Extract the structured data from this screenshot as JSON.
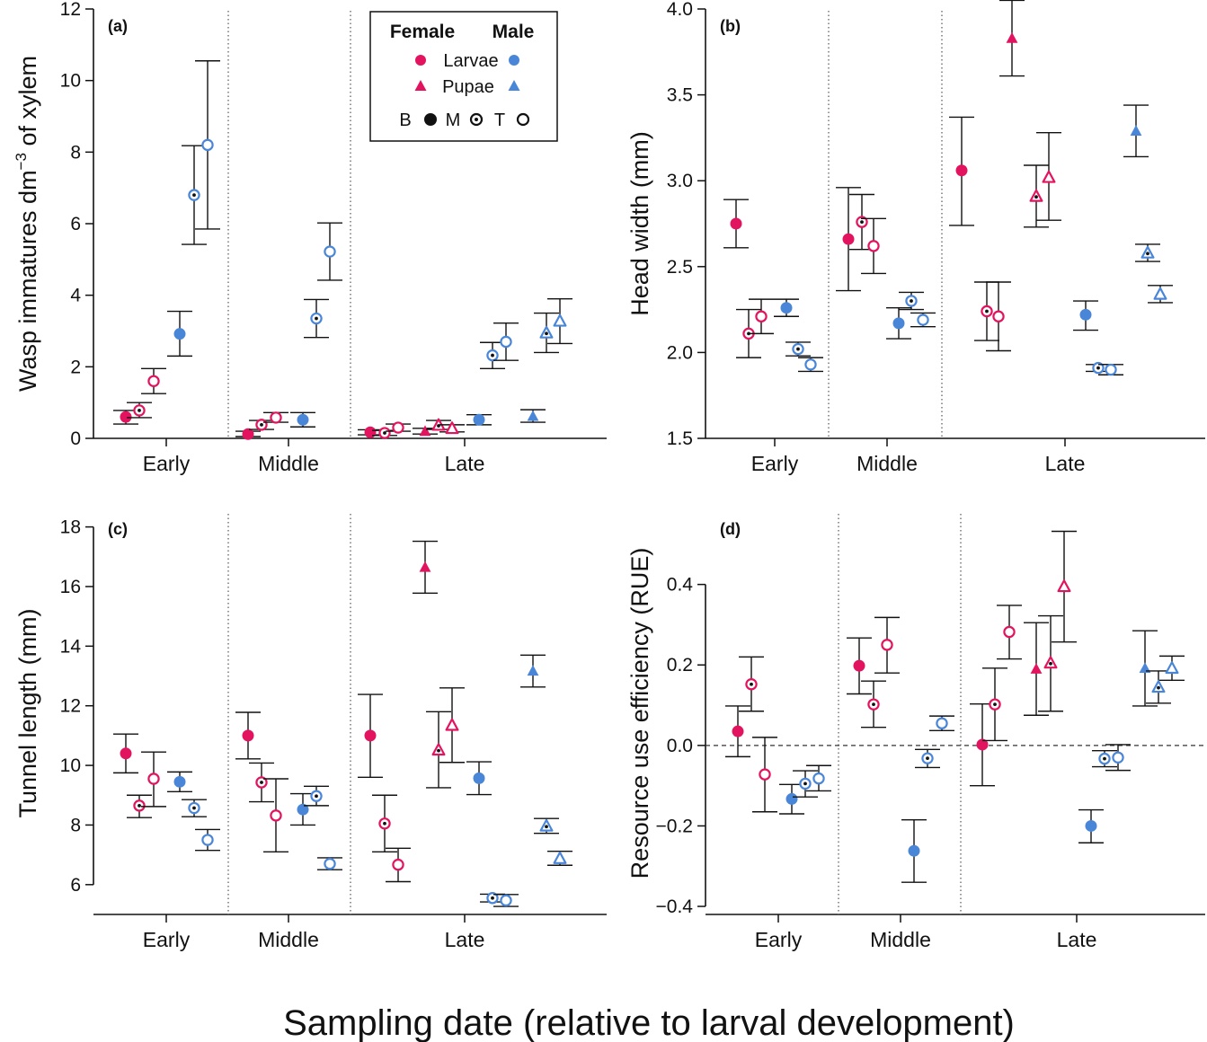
{
  "figure": {
    "xlabel": "Sampling date (relative to larval development)",
    "legend": {
      "header_female": "Female",
      "header_male": "Male",
      "larvae": "Larvae",
      "pupae": "Pupae",
      "b": "B",
      "m": "M",
      "t": "T"
    },
    "colors": {
      "female": "#e3145f",
      "male": "#4a86d8",
      "axis": "#111111"
    }
  },
  "chart_data": [
    {
      "panel": "(a)",
      "type": "scatter",
      "ylabel_main": "Wasp immatures dm",
      "ylabel_sup": "−3",
      "ylabel_tail": " of xylem",
      "ylim": [
        0,
        12
      ],
      "yticks": [
        0,
        2,
        4,
        6,
        8,
        10,
        12
      ],
      "groups": [
        "Early",
        "Middle",
        "Late"
      ],
      "points": [
        {
          "group": "Early",
          "sex": "F",
          "stage": "L",
          "pos": "B",
          "y": 0.6,
          "lo": 0.4,
          "hi": 0.78
        },
        {
          "group": "Early",
          "sex": "F",
          "stage": "L",
          "pos": "M",
          "y": 0.78,
          "lo": 0.58,
          "hi": 1.0
        },
        {
          "group": "Early",
          "sex": "F",
          "stage": "L",
          "pos": "T",
          "y": 1.6,
          "lo": 1.25,
          "hi": 1.95
        },
        {
          "group": "Early",
          "sex": "M",
          "stage": "L",
          "pos": "B",
          "y": 2.92,
          "lo": 2.3,
          "hi": 3.55
        },
        {
          "group": "Early",
          "sex": "M",
          "stage": "L",
          "pos": "M",
          "y": 6.8,
          "lo": 5.42,
          "hi": 8.18
        },
        {
          "group": "Early",
          "sex": "M",
          "stage": "L",
          "pos": "T",
          "y": 8.2,
          "lo": 5.85,
          "hi": 10.55
        },
        {
          "group": "Middle",
          "sex": "F",
          "stage": "L",
          "pos": "B",
          "y": 0.12,
          "lo": 0.05,
          "hi": 0.2
        },
        {
          "group": "Middle",
          "sex": "F",
          "stage": "L",
          "pos": "M",
          "y": 0.38,
          "lo": 0.25,
          "hi": 0.5
        },
        {
          "group": "Middle",
          "sex": "F",
          "stage": "L",
          "pos": "T",
          "y": 0.58,
          "lo": 0.45,
          "hi": 0.72
        },
        {
          "group": "Middle",
          "sex": "M",
          "stage": "L",
          "pos": "B",
          "y": 0.52,
          "lo": 0.32,
          "hi": 0.72
        },
        {
          "group": "Middle",
          "sex": "M",
          "stage": "L",
          "pos": "M",
          "y": 3.35,
          "lo": 2.82,
          "hi": 3.88
        },
        {
          "group": "Middle",
          "sex": "M",
          "stage": "L",
          "pos": "T",
          "y": 5.22,
          "lo": 4.42,
          "hi": 6.02
        },
        {
          "group": "Late",
          "sex": "F",
          "stage": "L",
          "pos": "B",
          "y": 0.17,
          "lo": 0.1,
          "hi": 0.24
        },
        {
          "group": "Late",
          "sex": "F",
          "stage": "L",
          "pos": "M",
          "y": 0.15,
          "lo": 0.08,
          "hi": 0.22
        },
        {
          "group": "Late",
          "sex": "F",
          "stage": "L",
          "pos": "T",
          "y": 0.3,
          "lo": 0.2,
          "hi": 0.4
        },
        {
          "group": "Late",
          "sex": "F",
          "stage": "P",
          "pos": "B",
          "y": 0.2,
          "lo": 0.12,
          "hi": 0.28
        },
        {
          "group": "Late",
          "sex": "F",
          "stage": "P",
          "pos": "M",
          "y": 0.37,
          "lo": 0.25,
          "hi": 0.5
        },
        {
          "group": "Late",
          "sex": "F",
          "stage": "P",
          "pos": "T",
          "y": 0.28,
          "lo": 0.18,
          "hi": 0.38
        },
        {
          "group": "Late",
          "sex": "M",
          "stage": "L",
          "pos": "B",
          "y": 0.52,
          "lo": 0.38,
          "hi": 0.66
        },
        {
          "group": "Late",
          "sex": "M",
          "stage": "L",
          "pos": "M",
          "y": 2.32,
          "lo": 1.95,
          "hi": 2.68
        },
        {
          "group": "Late",
          "sex": "M",
          "stage": "L",
          "pos": "T",
          "y": 2.7,
          "lo": 2.18,
          "hi": 3.22
        },
        {
          "group": "Late",
          "sex": "M",
          "stage": "P",
          "pos": "B",
          "y": 0.62,
          "lo": 0.45,
          "hi": 0.8
        },
        {
          "group": "Late",
          "sex": "M",
          "stage": "P",
          "pos": "M",
          "y": 2.95,
          "lo": 2.4,
          "hi": 3.5
        },
        {
          "group": "Late",
          "sex": "M",
          "stage": "P",
          "pos": "T",
          "y": 3.28,
          "lo": 2.65,
          "hi": 3.9
        }
      ]
    },
    {
      "panel": "(b)",
      "type": "scatter",
      "ylabel_main": "Head width (mm)",
      "ylim": [
        1.5,
        4.0
      ],
      "yticks": [
        1.5,
        2.0,
        2.5,
        3.0,
        3.5,
        4.0
      ],
      "ytick_decimals": 1,
      "groups": [
        "Early",
        "Middle",
        "Late"
      ],
      "points": [
        {
          "group": "Early",
          "sex": "F",
          "stage": "L",
          "pos": "B",
          "y": 2.75,
          "lo": 2.61,
          "hi": 2.89
        },
        {
          "group": "Early",
          "sex": "F",
          "stage": "L",
          "pos": "M",
          "y": 2.11,
          "lo": 1.97,
          "hi": 2.25
        },
        {
          "group": "Early",
          "sex": "F",
          "stage": "L",
          "pos": "T",
          "y": 2.21,
          "lo": 2.11,
          "hi": 2.31
        },
        {
          "group": "Early",
          "sex": "M",
          "stage": "L",
          "pos": "B",
          "y": 2.26,
          "lo": 2.21,
          "hi": 2.31
        },
        {
          "group": "Early",
          "sex": "M",
          "stage": "L",
          "pos": "M",
          "y": 2.02,
          "lo": 1.98,
          "hi": 2.06
        },
        {
          "group": "Early",
          "sex": "M",
          "stage": "L",
          "pos": "T",
          "y": 1.93,
          "lo": 1.89,
          "hi": 1.97
        },
        {
          "group": "Middle",
          "sex": "F",
          "stage": "L",
          "pos": "B",
          "y": 2.66,
          "lo": 2.36,
          "hi": 2.96
        },
        {
          "group": "Middle",
          "sex": "F",
          "stage": "L",
          "pos": "M",
          "y": 2.76,
          "lo": 2.6,
          "hi": 2.92
        },
        {
          "group": "Middle",
          "sex": "F",
          "stage": "L",
          "pos": "T",
          "y": 2.62,
          "lo": 2.46,
          "hi": 2.78
        },
        {
          "group": "Middle",
          "sex": "M",
          "stage": "L",
          "pos": "B",
          "y": 2.17,
          "lo": 2.08,
          "hi": 2.26
        },
        {
          "group": "Middle",
          "sex": "M",
          "stage": "L",
          "pos": "M",
          "y": 2.3,
          "lo": 2.25,
          "hi": 2.35
        },
        {
          "group": "Middle",
          "sex": "M",
          "stage": "L",
          "pos": "T",
          "y": 2.19,
          "lo": 2.15,
          "hi": 2.23
        },
        {
          "group": "Late",
          "sex": "F",
          "stage": "L",
          "pos": "B",
          "y": 3.06,
          "lo": 2.74,
          "hi": 3.37
        },
        {
          "group": "Late",
          "sex": "F",
          "stage": "L",
          "pos": "M",
          "y": 2.24,
          "lo": 2.07,
          "hi": 2.41
        },
        {
          "group": "Late",
          "sex": "F",
          "stage": "L",
          "pos": "T",
          "y": 2.21,
          "lo": 2.01,
          "hi": 2.41
        },
        {
          "group": "Late",
          "sex": "F",
          "stage": "P",
          "pos": "B",
          "y": 3.83,
          "lo": 3.61,
          "hi": 4.05
        },
        {
          "group": "Late",
          "sex": "F",
          "stage": "P",
          "pos": "M",
          "y": 2.91,
          "lo": 2.73,
          "hi": 3.09
        },
        {
          "group": "Late",
          "sex": "F",
          "stage": "P",
          "pos": "T",
          "y": 3.02,
          "lo": 2.77,
          "hi": 3.28
        },
        {
          "group": "Late",
          "sex": "M",
          "stage": "L",
          "pos": "B",
          "y": 2.22,
          "lo": 2.13,
          "hi": 2.3
        },
        {
          "group": "Late",
          "sex": "M",
          "stage": "L",
          "pos": "M",
          "y": 1.91,
          "lo": 1.89,
          "hi": 1.93
        },
        {
          "group": "Late",
          "sex": "M",
          "stage": "L",
          "pos": "T",
          "y": 1.9,
          "lo": 1.87,
          "hi": 1.93
        },
        {
          "group": "Late",
          "sex": "M",
          "stage": "P",
          "pos": "B",
          "y": 3.29,
          "lo": 3.14,
          "hi": 3.44
        },
        {
          "group": "Late",
          "sex": "M",
          "stage": "P",
          "pos": "M",
          "y": 2.58,
          "lo": 2.53,
          "hi": 2.63
        },
        {
          "group": "Late",
          "sex": "M",
          "stage": "P",
          "pos": "T",
          "y": 2.34,
          "lo": 2.29,
          "hi": 2.39
        }
      ]
    },
    {
      "panel": "(c)",
      "type": "scatter",
      "ylabel_main": "Tunnel  length (mm)",
      "ylim": [
        5,
        18.5
      ],
      "yticks": [
        6,
        8,
        10,
        12,
        14,
        16,
        18
      ],
      "groups": [
        "Early",
        "Middle",
        "Late"
      ],
      "points": [
        {
          "group": "Early",
          "sex": "F",
          "stage": "L",
          "pos": "B",
          "y": 10.4,
          "lo": 9.75,
          "hi": 11.05
        },
        {
          "group": "Early",
          "sex": "F",
          "stage": "L",
          "pos": "M",
          "y": 8.65,
          "lo": 8.25,
          "hi": 9.0
        },
        {
          "group": "Early",
          "sex": "F",
          "stage": "L",
          "pos": "T",
          "y": 9.55,
          "lo": 8.62,
          "hi": 10.45
        },
        {
          "group": "Early",
          "sex": "M",
          "stage": "L",
          "pos": "B",
          "y": 9.45,
          "lo": 9.12,
          "hi": 9.78
        },
        {
          "group": "Early",
          "sex": "M",
          "stage": "L",
          "pos": "M",
          "y": 8.57,
          "lo": 8.28,
          "hi": 8.85
        },
        {
          "group": "Early",
          "sex": "M",
          "stage": "L",
          "pos": "T",
          "y": 7.5,
          "lo": 7.15,
          "hi": 7.85
        },
        {
          "group": "Middle",
          "sex": "F",
          "stage": "L",
          "pos": "B",
          "y": 11.0,
          "lo": 10.22,
          "hi": 11.78
        },
        {
          "group": "Middle",
          "sex": "F",
          "stage": "L",
          "pos": "M",
          "y": 9.43,
          "lo": 8.78,
          "hi": 10.08
        },
        {
          "group": "Middle",
          "sex": "F",
          "stage": "L",
          "pos": "T",
          "y": 8.32,
          "lo": 7.1,
          "hi": 9.55
        },
        {
          "group": "Middle",
          "sex": "M",
          "stage": "L",
          "pos": "B",
          "y": 8.52,
          "lo": 8.0,
          "hi": 9.05
        },
        {
          "group": "Middle",
          "sex": "M",
          "stage": "L",
          "pos": "M",
          "y": 8.97,
          "lo": 8.65,
          "hi": 9.3
        },
        {
          "group": "Middle",
          "sex": "M",
          "stage": "L",
          "pos": "T",
          "y": 6.7,
          "lo": 6.5,
          "hi": 6.9
        },
        {
          "group": "Late",
          "sex": "F",
          "stage": "L",
          "pos": "B",
          "y": 11.0,
          "lo": 9.6,
          "hi": 12.38
        },
        {
          "group": "Late",
          "sex": "F",
          "stage": "L",
          "pos": "M",
          "y": 8.05,
          "lo": 7.1,
          "hi": 9.0
        },
        {
          "group": "Late",
          "sex": "F",
          "stage": "L",
          "pos": "T",
          "y": 6.67,
          "lo": 6.1,
          "hi": 7.22
        },
        {
          "group": "Late",
          "sex": "F",
          "stage": "P",
          "pos": "B",
          "y": 16.65,
          "lo": 15.78,
          "hi": 17.52
        },
        {
          "group": "Late",
          "sex": "F",
          "stage": "P",
          "pos": "M",
          "y": 10.52,
          "lo": 9.25,
          "hi": 11.8
        },
        {
          "group": "Late",
          "sex": "F",
          "stage": "P",
          "pos": "T",
          "y": 11.35,
          "lo": 10.1,
          "hi": 12.6
        },
        {
          "group": "Late",
          "sex": "M",
          "stage": "L",
          "pos": "B",
          "y": 9.57,
          "lo": 9.02,
          "hi": 10.12
        },
        {
          "group": "Late",
          "sex": "M",
          "stage": "L",
          "pos": "M",
          "y": 5.55,
          "lo": 5.42,
          "hi": 5.68
        },
        {
          "group": "Late",
          "sex": "M",
          "stage": "L",
          "pos": "T",
          "y": 5.47,
          "lo": 5.27,
          "hi": 5.67
        },
        {
          "group": "Late",
          "sex": "M",
          "stage": "P",
          "pos": "B",
          "y": 13.17,
          "lo": 12.63,
          "hi": 13.7
        },
        {
          "group": "Late",
          "sex": "M",
          "stage": "P",
          "pos": "M",
          "y": 7.97,
          "lo": 7.72,
          "hi": 8.22
        },
        {
          "group": "Late",
          "sex": "M",
          "stage": "P",
          "pos": "T",
          "y": 6.88,
          "lo": 6.65,
          "hi": 7.12
        }
      ]
    },
    {
      "panel": "(d)",
      "type": "scatter",
      "ylabel_main": "Resource use efficiency (RUE)",
      "ylim": [
        -0.42,
        0.58
      ],
      "yticks": [
        -0.4,
        -0.2,
        0.0,
        0.2,
        0.4
      ],
      "ytick_decimals": 1,
      "zero_line": true,
      "groups": [
        "Early",
        "Middle",
        "Late"
      ],
      "points": [
        {
          "group": "Early",
          "sex": "F",
          "stage": "L",
          "pos": "B",
          "y": 0.035,
          "lo": -0.028,
          "hi": 0.098
        },
        {
          "group": "Early",
          "sex": "F",
          "stage": "L",
          "pos": "M",
          "y": 0.152,
          "lo": 0.085,
          "hi": 0.22
        },
        {
          "group": "Early",
          "sex": "F",
          "stage": "L",
          "pos": "T",
          "y": -0.072,
          "lo": -0.165,
          "hi": 0.02
        },
        {
          "group": "Early",
          "sex": "M",
          "stage": "L",
          "pos": "B",
          "y": -0.133,
          "lo": -0.17,
          "hi": -0.097
        },
        {
          "group": "Early",
          "sex": "M",
          "stage": "L",
          "pos": "M",
          "y": -0.095,
          "lo": -0.128,
          "hi": -0.063
        },
        {
          "group": "Early",
          "sex": "M",
          "stage": "L",
          "pos": "T",
          "y": -0.082,
          "lo": -0.113,
          "hi": -0.05
        },
        {
          "group": "Middle",
          "sex": "F",
          "stage": "L",
          "pos": "B",
          "y": 0.198,
          "lo": 0.128,
          "hi": 0.267
        },
        {
          "group": "Middle",
          "sex": "F",
          "stage": "L",
          "pos": "M",
          "y": 0.102,
          "lo": 0.045,
          "hi": 0.16
        },
        {
          "group": "Middle",
          "sex": "F",
          "stage": "L",
          "pos": "T",
          "y": 0.25,
          "lo": 0.18,
          "hi": 0.318
        },
        {
          "group": "Middle",
          "sex": "M",
          "stage": "L",
          "pos": "B",
          "y": -0.262,
          "lo": -0.34,
          "hi": -0.185
        },
        {
          "group": "Middle",
          "sex": "M",
          "stage": "L",
          "pos": "M",
          "y": -0.032,
          "lo": -0.055,
          "hi": -0.01
        },
        {
          "group": "Middle",
          "sex": "M",
          "stage": "L",
          "pos": "T",
          "y": 0.055,
          "lo": 0.037,
          "hi": 0.073
        },
        {
          "group": "Late",
          "sex": "F",
          "stage": "L",
          "pos": "B",
          "y": 0.002,
          "lo": -0.1,
          "hi": 0.103
        },
        {
          "group": "Late",
          "sex": "F",
          "stage": "L",
          "pos": "M",
          "y": 0.102,
          "lo": 0.012,
          "hi": 0.192
        },
        {
          "group": "Late",
          "sex": "F",
          "stage": "L",
          "pos": "T",
          "y": 0.282,
          "lo": 0.215,
          "hi": 0.348
        },
        {
          "group": "Late",
          "sex": "F",
          "stage": "P",
          "pos": "B",
          "y": 0.19,
          "lo": 0.075,
          "hi": 0.305
        },
        {
          "group": "Late",
          "sex": "F",
          "stage": "P",
          "pos": "M",
          "y": 0.205,
          "lo": 0.085,
          "hi": 0.322
        },
        {
          "group": "Late",
          "sex": "F",
          "stage": "P",
          "pos": "T",
          "y": 0.395,
          "lo": 0.257,
          "hi": 0.532
        },
        {
          "group": "Late",
          "sex": "M",
          "stage": "L",
          "pos": "B",
          "y": -0.2,
          "lo": -0.242,
          "hi": -0.16
        },
        {
          "group": "Late",
          "sex": "M",
          "stage": "L",
          "pos": "M",
          "y": -0.033,
          "lo": -0.053,
          "hi": -0.013
        },
        {
          "group": "Late",
          "sex": "M",
          "stage": "L",
          "pos": "T",
          "y": -0.03,
          "lo": -0.062,
          "hi": 0.002
        },
        {
          "group": "Late",
          "sex": "M",
          "stage": "P",
          "pos": "B",
          "y": 0.192,
          "lo": 0.098,
          "hi": 0.285
        },
        {
          "group": "Late",
          "sex": "M",
          "stage": "P",
          "pos": "M",
          "y": 0.145,
          "lo": 0.105,
          "hi": 0.185
        },
        {
          "group": "Late",
          "sex": "M",
          "stage": "P",
          "pos": "T",
          "y": 0.192,
          "lo": 0.162,
          "hi": 0.222
        }
      ]
    }
  ]
}
